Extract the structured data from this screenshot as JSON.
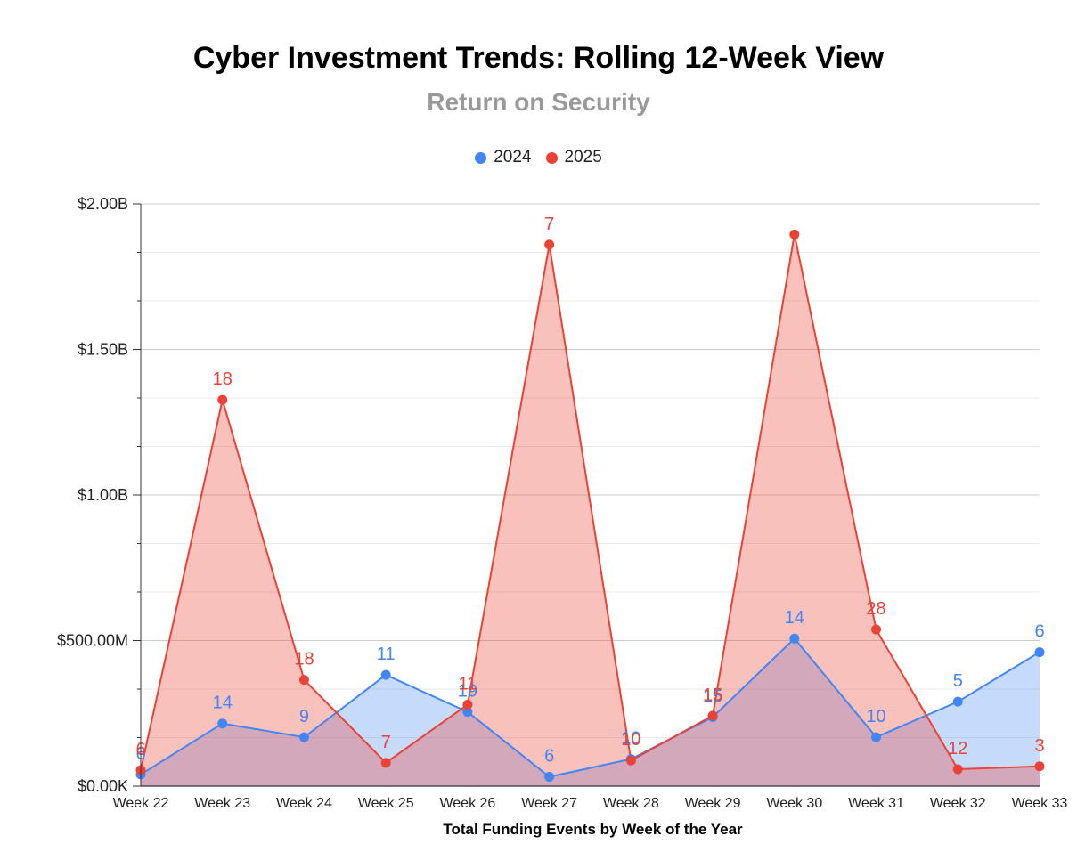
{
  "chart_data": {
    "type": "area",
    "title": "Cyber Investment Trends: Rolling 12-Week View",
    "subtitle": "Return on Security",
    "xlabel": "Total Funding Events by Week of the Year",
    "ylabel": "",
    "categories": [
      "Week 22",
      "Week 23",
      "Week 24",
      "Week 25",
      "Week 26",
      "Week 27",
      "Week 28",
      "Week 29",
      "Week 30",
      "Week 31",
      "Week 32",
      "Week 33"
    ],
    "ylim": [
      0,
      2000000000
    ],
    "yticks": [
      0,
      500000000,
      1000000000,
      1500000000,
      2000000000
    ],
    "ytick_labels": [
      "$0.00K",
      "$500.00M",
      "$1.00B",
      "$1.50B",
      "$2.00B"
    ],
    "legend_position": "top-center",
    "grid": true,
    "series": [
      {
        "name": "2024",
        "color": "#4285f4",
        "fill": "#c5d9f7",
        "values": [
          40000000,
          215000000,
          168000000,
          382000000,
          255000000,
          32000000,
          93000000,
          237000000,
          507000000,
          168000000,
          290000000,
          460000000
        ],
        "labels": [
          "6",
          "14",
          "9",
          "11",
          "19",
          "6",
          "10",
          "15",
          "14",
          "10",
          "5",
          "6"
        ]
      },
      {
        "name": "2025",
        "color": "#ea4335",
        "fill": "#f6c4c0",
        "values": [
          55000000,
          1327000000,
          365000000,
          80000000,
          280000000,
          1860000000,
          88000000,
          242000000,
          1895000000,
          538000000,
          58000000,
          68000000
        ],
        "labels": [
          "6",
          "18",
          "18",
          "7",
          "11",
          "7",
          "10",
          "15",
          "",
          "28",
          "12",
          "3"
        ]
      }
    ]
  }
}
